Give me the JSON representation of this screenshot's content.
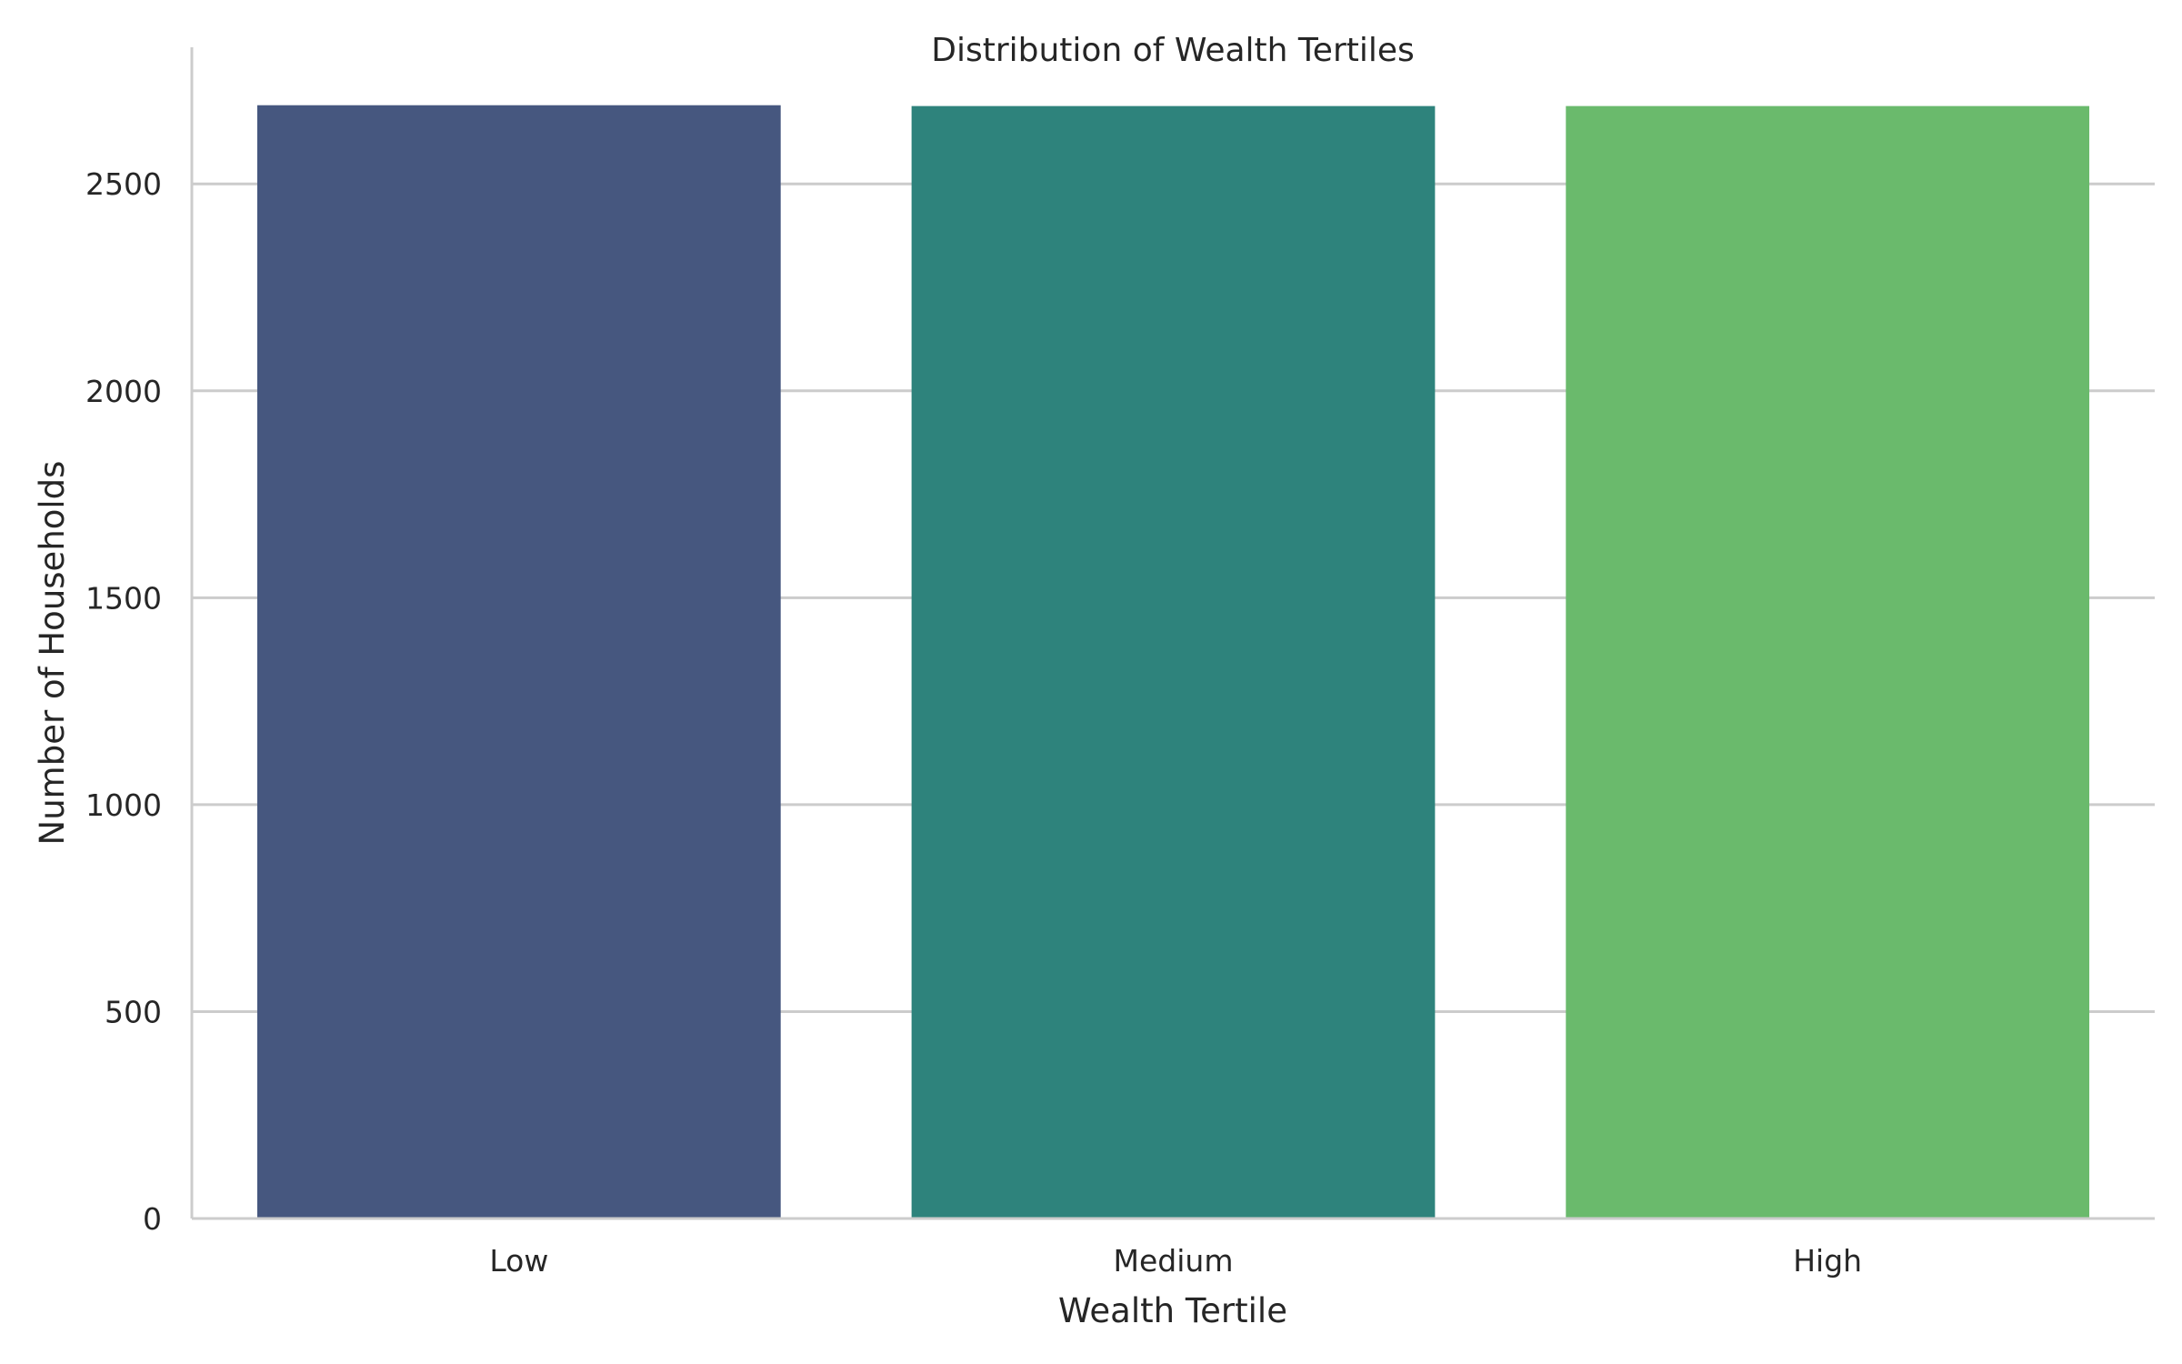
{
  "chart_data": {
    "type": "bar",
    "title": "Distribution of Wealth Tertiles",
    "xlabel": "Wealth Tertile",
    "ylabel": "Number of Households",
    "categories": [
      "Low",
      "Medium",
      "High"
    ],
    "values": [
      2690,
      2688,
      2688
    ],
    "colors": [
      "#46577f",
      "#2e837c",
      "#6aba6c"
    ],
    "ylim": [
      0,
      2830
    ],
    "yticks": [
      0,
      500,
      1000,
      1500,
      2000,
      2500
    ],
    "grid": "y",
    "legend": "none"
  }
}
